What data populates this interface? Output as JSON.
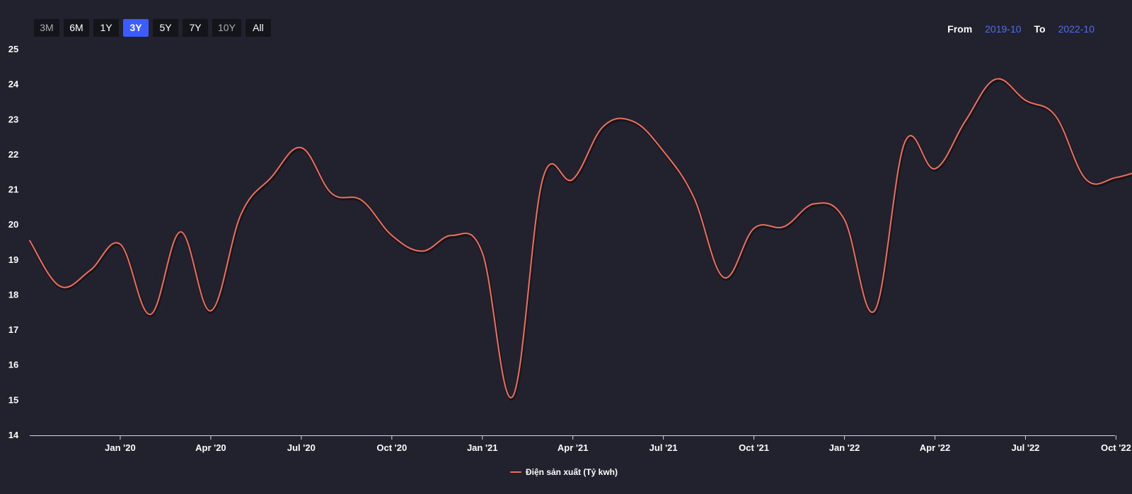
{
  "range_selector": {
    "buttons": [
      {
        "label": "3M",
        "state": "dim"
      },
      {
        "label": "6M",
        "state": "normal"
      },
      {
        "label": "1Y",
        "state": "normal"
      },
      {
        "label": "3Y",
        "state": "active"
      },
      {
        "label": "5Y",
        "state": "normal"
      },
      {
        "label": "7Y",
        "state": "normal"
      },
      {
        "label": "10Y",
        "state": "dim"
      },
      {
        "label": "All",
        "state": "normal"
      }
    ]
  },
  "date_range": {
    "from_label": "From",
    "from_value": "2019-10",
    "to_label": "To",
    "to_value": "2022-10"
  },
  "colors": {
    "background": "#21222e",
    "series_line": "#f06e5a",
    "active_button": "#3d5cff",
    "date_value": "#4f6cf5"
  },
  "chart_data": {
    "type": "line",
    "title": "",
    "xlabel": "",
    "ylabel": "",
    "ylim": [
      14,
      25
    ],
    "y_ticks": [
      14,
      15,
      16,
      17,
      18,
      19,
      20,
      21,
      22,
      23,
      24,
      25
    ],
    "grid": false,
    "legend_position": "bottom-center",
    "x_tick_labels": [
      "Jan '20",
      "Apr '20",
      "Jul '20",
      "Oct '20",
      "Jan '21",
      "Apr '21",
      "Jul '21",
      "Oct '21",
      "Jan '22",
      "Apr '22",
      "Jul '22",
      "Oct '22"
    ],
    "x": [
      "2019-10",
      "2019-11",
      "2019-12",
      "2020-01",
      "2020-02",
      "2020-03",
      "2020-04",
      "2020-05",
      "2020-06",
      "2020-07",
      "2020-08",
      "2020-09",
      "2020-10",
      "2020-11",
      "2020-12",
      "2021-01",
      "2021-02",
      "2021-03",
      "2021-04",
      "2021-05",
      "2021-06",
      "2021-07",
      "2021-08",
      "2021-09",
      "2021-10",
      "2021-11",
      "2021-12",
      "2022-01",
      "2022-02",
      "2022-03",
      "2022-04",
      "2022-05",
      "2022-06",
      "2022-07",
      "2022-08",
      "2022-09",
      "2022-10",
      "2022-11"
    ],
    "series": [
      {
        "name": "Điện sản xuất (Tỷ kwh)",
        "values": [
          19.55,
          18.25,
          18.7,
          19.45,
          17.45,
          19.8,
          17.55,
          20.3,
          21.35,
          22.2,
          20.9,
          20.7,
          19.7,
          19.25,
          19.7,
          19.2,
          15.1,
          21.3,
          21.3,
          22.8,
          22.95,
          22.1,
          20.8,
          18.5,
          19.9,
          19.95,
          20.6,
          20.15,
          17.55,
          22.35,
          21.6,
          22.95,
          24.15,
          23.55,
          23.1,
          21.3,
          21.35,
          21.6
        ]
      }
    ]
  }
}
